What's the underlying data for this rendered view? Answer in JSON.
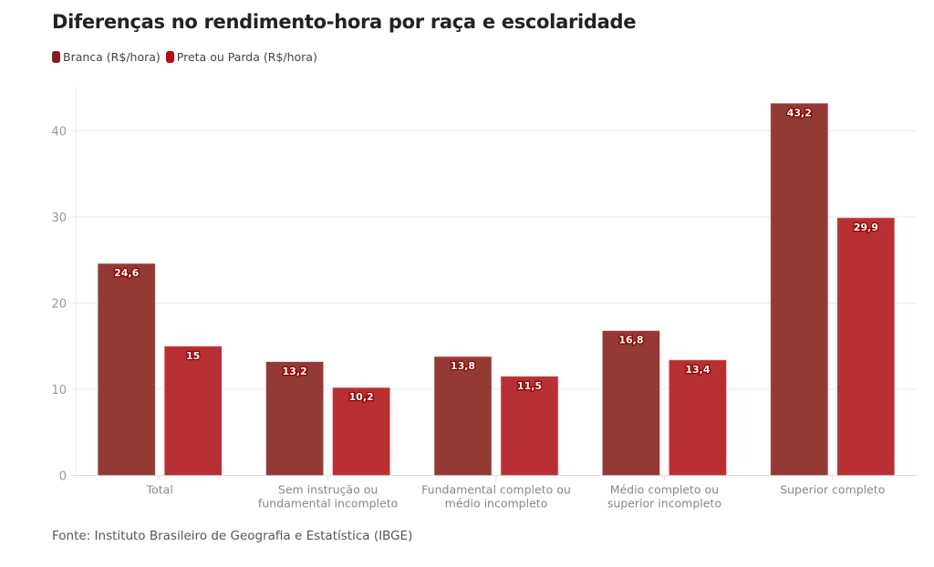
{
  "header": {
    "title": "Diferenças no rendimento-hora por raça e escolaridade"
  },
  "legend": [
    {
      "label": "Branca (R$/hora)",
      "color": "#8b1a1a"
    },
    {
      "label": "Preta ou Parda (R$/hora)",
      "color": "#b40f14"
    }
  ],
  "footer": {
    "source": "Fonte: Instituto Brasileiro de Geografia e Estatística (IBGE)"
  },
  "chart_data": {
    "type": "bar",
    "title": "Diferenças no rendimento-hora por raça e escolaridade",
    "xlabel": "",
    "ylabel": "",
    "ylim": [
      0,
      45
    ],
    "yticks": [
      0,
      10,
      20,
      30,
      40
    ],
    "grid": true,
    "legend_position": "top-left",
    "categories": [
      [
        "Total"
      ],
      [
        "Sem instrução ou",
        "fundamental incompleto"
      ],
      [
        "Fundamental completo ou",
        "médio incompleto"
      ],
      [
        "Médio completo ou",
        "superior incompleto"
      ],
      [
        "Superior completo"
      ]
    ],
    "series": [
      {
        "name": "Branca (R$/hora)",
        "color": "#933a35",
        "values": [
          24.6,
          13.2,
          13.8,
          16.8,
          43.2
        ],
        "labels": [
          "24,6",
          "13,2",
          "13,8",
          "16,8",
          "43,2"
        ]
      },
      {
        "name": "Preta ou Parda (R$/hora)",
        "color": "#b93034",
        "values": [
          15,
          10.2,
          11.5,
          13.4,
          29.9
        ],
        "labels": [
          "15",
          "10,2",
          "11,5",
          "13,4",
          "29,9"
        ]
      }
    ]
  }
}
